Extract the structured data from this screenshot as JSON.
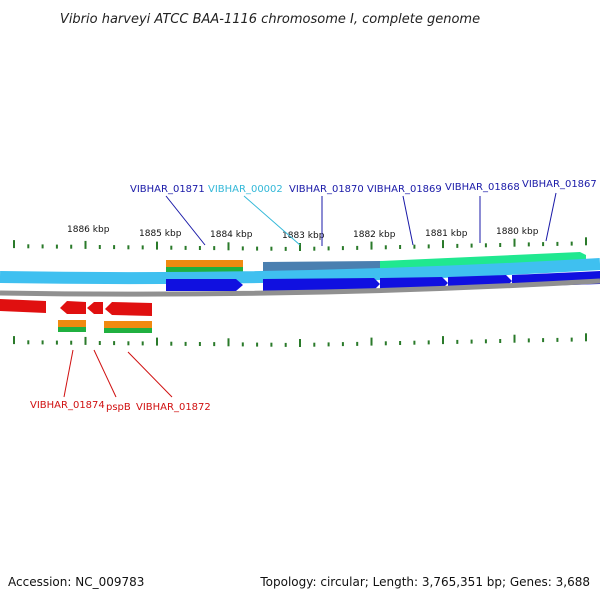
{
  "title": "Vibrio harveyi ATCC BAA-1116 chromosome I, complete genome",
  "footer": {
    "accession": "Accession: NC_009783",
    "summary": "Topology: circular; Length: 3,765,351 bp; Genes: 3,688"
  },
  "kbp_labels": [
    "1886 kbp",
    "1885 kbp",
    "1884 kbp",
    "1883 kbp",
    "1882 kbp",
    "1881 kbp",
    "1880 kbp"
  ],
  "forward_genes": [
    {
      "label": "VIBHAR_01871",
      "color": "#1a1aa8"
    },
    {
      "label": "VIBHAR_00002",
      "color": "#33b8d8"
    },
    {
      "label": "VIBHAR_01870",
      "color": "#1a1aa8"
    },
    {
      "label": "VIBHAR_01869",
      "color": "#1a1aa8"
    },
    {
      "label": "VIBHAR_01868",
      "color": "#1a1aa8"
    },
    {
      "label": "VIBHAR_01867",
      "color": "#1a1aa8"
    }
  ],
  "reverse_genes": [
    {
      "label": "VIBHAR_01874",
      "color": "#d01010"
    },
    {
      "label": "pspB",
      "color": "#d01010"
    },
    {
      "label": "VIBHAR_01872",
      "color": "#d01010"
    }
  ],
  "colors": {
    "backbone_forward": "#3fc0f0",
    "backbone_reverse": "#909090",
    "cds_forward": "#1010e0",
    "cds_reverse": "#e01010",
    "gene_orange": "#f08a10",
    "gene_green": "#20b040",
    "mrna_steel": "#4a7fb0",
    "mrna_green": "#20e890",
    "tick": "#2a7a2a"
  }
}
